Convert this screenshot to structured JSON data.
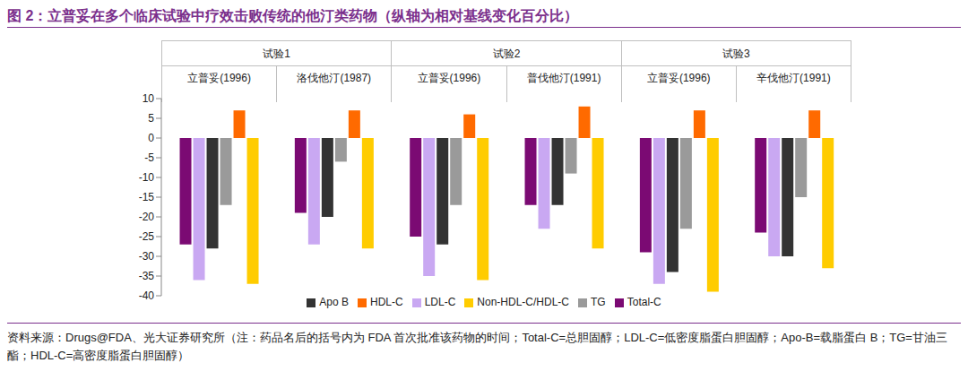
{
  "chart_data": {
    "type": "bar",
    "title": "图 2：立普妥在多个临床试验中疗效击败传统的他汀类药物（纵轴为相对基线变化百分比）",
    "note": "资料来源：Drugs@FDA、光大证券研究所（注：药品名后的括号内为 FDA 首次批准该药物的时间；Total-C=总胆固醇；LDL-C=低密度脂蛋白胆固醇；Apo-B=载脂蛋白 B；TG=甘油三酯；HDL-C=高密度脂蛋白胆固醇）",
    "groups": [
      {
        "name": "试验1",
        "size": 2
      },
      {
        "name": "试验2",
        "size": 2
      },
      {
        "name": "试验3",
        "size": 2
      }
    ],
    "categories": [
      "立普妥(1996)",
      "洛伐他汀(1987)",
      "立普妥(1996)",
      "普伐他汀(1991)",
      "立普妥(1996)",
      "辛伐他汀(1991)"
    ],
    "series": [
      {
        "name": "Total-C",
        "color": "#7b0a73",
        "values": [
          -27,
          -19,
          -25,
          -17,
          -29,
          -24
        ]
      },
      {
        "name": "LDL-C",
        "color": "#c9a8f2",
        "values": [
          -36,
          -27,
          -35,
          -23,
          -37,
          -30
        ]
      },
      {
        "name": "Apo B",
        "color": "#333333",
        "values": [
          -28,
          -20,
          -27,
          -17,
          -34,
          -30
        ]
      },
      {
        "name": "TG",
        "color": "#9a9a9a",
        "values": [
          -17,
          -6,
          -17,
          -9,
          -23,
          -15
        ]
      },
      {
        "name": "HDL-C",
        "color": "#ff6a00",
        "values": [
          7,
          7,
          6,
          8,
          7,
          7
        ]
      },
      {
        "name": "Non-HDL-C/HDL-C",
        "color": "#ffcc00",
        "values": [
          -37,
          -28,
          -36,
          -28,
          -39,
          -33
        ]
      }
    ],
    "ylim": [
      -40,
      10
    ],
    "yticks": [
      -40,
      -35,
      -30,
      -25,
      -20,
      -15,
      -10,
      -5,
      0,
      5,
      10
    ],
    "grid": false,
    "legend": "bottom"
  }
}
